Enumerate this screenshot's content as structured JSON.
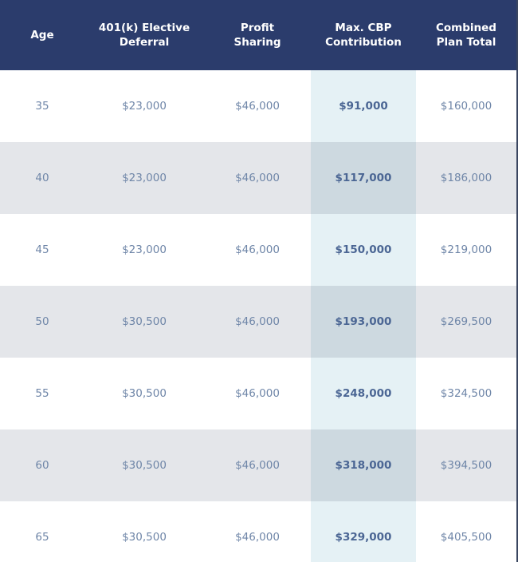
{
  "table": {
    "columns": [
      "Age",
      "401(k) Elective\nDeferral",
      "Profit\nSharing",
      "Max. CBP\nContribution",
      "Combined\nPlan Total"
    ],
    "rows": [
      [
        "35",
        "$23,000",
        "$46,000",
        "$91,000",
        "$160,000"
      ],
      [
        "40",
        "$23,000",
        "$46,000",
        "$117,000",
        "$186,000"
      ],
      [
        "45",
        "$23,000",
        "$46,000",
        "$150,000",
        "$219,000"
      ],
      [
        "50",
        "$30,500",
        "$46,000",
        "$193,000",
        "$269,500"
      ],
      [
        "55",
        "$30,500",
        "$46,000",
        "$248,000",
        "$324,500"
      ],
      [
        "60",
        "$30,500",
        "$46,000",
        "$318,000",
        "$394,500"
      ],
      [
        "65",
        "$30,500",
        "$46,000",
        "$329,000",
        "$405,500"
      ]
    ]
  }
}
